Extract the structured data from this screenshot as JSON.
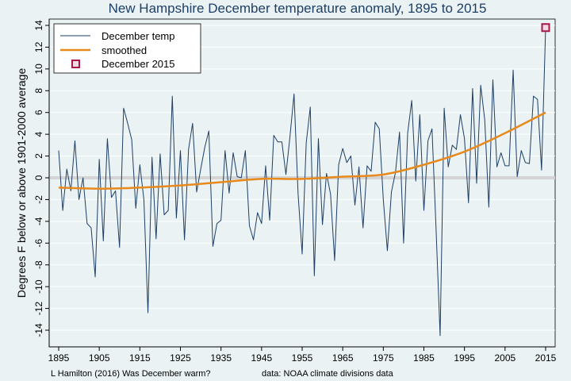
{
  "chart_data": {
    "type": "line",
    "title": "New Hampshire December temperature anomaly, 1895 to 2015",
    "ylabel": "Degrees F below or above 1901-2000 average",
    "xlabel": "",
    "xlim": [
      1895,
      2015
    ],
    "ylim": [
      -14,
      14
    ],
    "xticks": [
      1895,
      1905,
      1915,
      1925,
      1935,
      1945,
      1955,
      1965,
      1975,
      1985,
      1995,
      2005,
      2015
    ],
    "yticks": [
      -14,
      -12,
      -10,
      -8,
      -6,
      -4,
      -2,
      0,
      2,
      4,
      6,
      8,
      10,
      12,
      14
    ],
    "reference_line": 0,
    "grid": true,
    "legend_position": "top-left",
    "colors": {
      "line": "#1e3f66",
      "smoothed": "#e8891c",
      "marker": "#a6174a",
      "reference": "#d4d4d4",
      "grid": "#ffffff",
      "plot_background": "#eaf2f3"
    },
    "series": [
      {
        "name": "December temp",
        "x_start": 1895,
        "values": [
          2.5,
          -3.0,
          0.8,
          -1.2,
          3.4,
          -2.0,
          0.0,
          -4.2,
          -4.6,
          -9.1,
          1.7,
          -5.8,
          3.6,
          -1.8,
          -1.2,
          -6.4,
          6.4,
          5.0,
          3.5,
          -2.8,
          1.2,
          -2.0,
          -12.4,
          1.9,
          -5.6,
          2.2,
          -3.4,
          -3.0,
          7.5,
          -3.7,
          2.5,
          -5.7,
          2.6,
          5.0,
          -1.3,
          0.8,
          2.8,
          4.3,
          -6.3,
          -4.2,
          -3.9,
          2.5,
          -1.4,
          2.3,
          0.1,
          0.0,
          2.5,
          -4.4,
          -5.7,
          -3.2,
          -4.2,
          1.1,
          -3.9,
          3.9,
          3.3,
          3.3,
          0.3,
          3.8,
          7.7,
          -1.5,
          -7.0,
          3.2,
          6.5,
          -9.0,
          3.6,
          -4.3,
          0.4,
          -1.5,
          -7.6,
          1.2,
          2.7,
          1.4,
          2.0,
          -2.5,
          1.0,
          -4.6,
          1.1,
          0.6,
          5.1,
          4.5,
          -2.0,
          -6.7,
          -1.3,
          0.5,
          4.2,
          -6.0,
          4.1,
          7.1,
          -0.3,
          5.8,
          -3.0,
          3.4,
          4.5,
          -4.7,
          -14.5,
          6.4,
          1.0,
          3.0,
          2.6,
          5.8,
          3.6,
          -2.3,
          8.2,
          -0.5,
          8.5,
          5.3,
          -2.7,
          9.0,
          1.0,
          2.3,
          1.1,
          1.1,
          9.9,
          0.1,
          2.5,
          1.4,
          1.3,
          7.5,
          7.2,
          0.7,
          13.8
        ]
      },
      {
        "name": "smoothed",
        "x": [
          1895,
          1905,
          1915,
          1925,
          1935,
          1945,
          1955,
          1965,
          1975,
          1985,
          1995,
          2005,
          2015
        ],
        "values": [
          -0.9,
          -1.0,
          -0.9,
          -0.7,
          -0.4,
          -0.1,
          -0.1,
          0.1,
          0.3,
          1.2,
          2.4,
          4.1,
          6.0
        ]
      },
      {
        "name": "December 2015",
        "x": [
          2015
        ],
        "values": [
          13.8
        ]
      }
    ]
  },
  "footnote": {
    "citation": "L Hamilton (2016) Was December warm?",
    "source": "data: NOAA climate divisions data"
  }
}
